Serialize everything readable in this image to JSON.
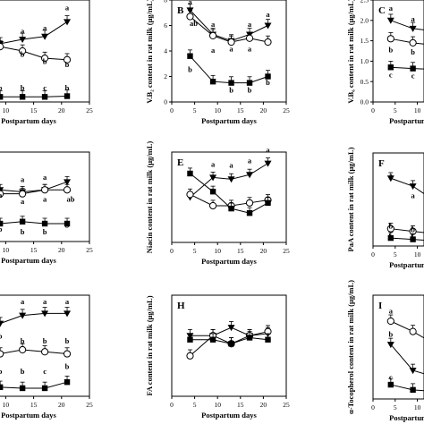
{
  "panel_letters": [
    "B",
    "C",
    "E",
    "F",
    "H",
    "I"
  ],
  "chart_data": [
    {
      "type": "line",
      "x": [
        4,
        9,
        13,
        17,
        21
      ],
      "xlim": [
        0,
        25
      ],
      "x_tick_labels": [
        "10",
        "15",
        "20",
        "25"
      ],
      "xlabel": "Postpartum days",
      "ylabel": "",
      "y_tick_labels": [],
      "series": [
        {
          "marker": "triangle",
          "values": [
            3.4,
            4.0,
            4.3,
            4.5,
            5.5
          ]
        },
        {
          "marker": "circle",
          "values": [
            3.4,
            3.8,
            3.5,
            3.0,
            2.9
          ]
        },
        {
          "marker": "square",
          "values": [
            0.3,
            0.35,
            0.35,
            0.35,
            0.4
          ]
        }
      ],
      "annotations": [
        {
          "text": "a",
          "x": 13,
          "y": 4.7
        },
        {
          "text": "a",
          "x": 17,
          "y": 4.9
        },
        {
          "text": "a",
          "x": 21,
          "y": 6.3
        },
        {
          "text": "b",
          "x": 13,
          "y": 3.1
        },
        {
          "text": "b",
          "x": 17,
          "y": 2.6
        },
        {
          "text": "b",
          "x": 21,
          "y": 2.4
        },
        {
          "text": "b",
          "x": 9,
          "y": 0.8
        },
        {
          "text": "b",
          "x": 13,
          "y": 0.8
        },
        {
          "text": "c",
          "x": 17,
          "y": 0.8
        },
        {
          "text": "b",
          "x": 21,
          "y": 0.8
        }
      ]
    },
    {
      "type": "line",
      "letter": "B",
      "x": [
        4,
        9,
        13,
        17,
        21
      ],
      "xlim": [
        0,
        25
      ],
      "ylim": [
        0,
        8
      ],
      "x_tick_labels": [
        "0",
        "5",
        "10",
        "15",
        "20",
        "25"
      ],
      "y_tick_labels": [
        "0",
        "2",
        "4",
        "6",
        "8"
      ],
      "xlabel": "Postpartum days",
      "ylabel": "V.B₂ content in rat milk (μg/mL)",
      "series": [
        {
          "marker": "triangle",
          "values": [
            7.2,
            5.3,
            4.8,
            5.3,
            6.0
          ]
        },
        {
          "marker": "circle",
          "values": [
            6.7,
            5.2,
            4.7,
            5.0,
            4.7
          ]
        },
        {
          "marker": "square",
          "values": [
            3.6,
            1.6,
            1.5,
            1.5,
            2.0
          ]
        }
      ],
      "annotations": [
        {
          "text": "a",
          "x": 4,
          "y": 7.65
        },
        {
          "text": "ab",
          "x": 4,
          "y": 5.95
        },
        {
          "text": "a",
          "x": 9,
          "y": 5.9
        },
        {
          "text": "a",
          "x": 17,
          "y": 5.9
        },
        {
          "text": "a",
          "x": 21,
          "y": 6.65
        },
        {
          "text": "a",
          "x": 9,
          "y": 3.85
        },
        {
          "text": "a",
          "x": 13,
          "y": 3.95
        },
        {
          "text": "a",
          "x": 17,
          "y": 3.95
        },
        {
          "text": "b",
          "x": 4,
          "y": 2.35
        },
        {
          "text": "b",
          "x": 13,
          "y": 0.75
        },
        {
          "text": "b",
          "x": 17,
          "y": 0.75
        },
        {
          "text": "b",
          "x": 21,
          "y": 1.35
        }
      ]
    },
    {
      "type": "line",
      "letter": "C",
      "x": [
        4,
        9,
        13,
        17,
        21
      ],
      "xlim": [
        0,
        25
      ],
      "ylim": [
        0,
        2.5
      ],
      "x_tick_labels": [
        "0",
        "5",
        "10"
      ],
      "y_tick_labels": [
        "0.0",
        "0.5",
        "1.0",
        "1.5",
        "2.0",
        "2.5"
      ],
      "xlabel": "Postpartum days",
      "ylabel": "V.B₆ content in rat milk (μg/mL)",
      "series": [
        {
          "marker": "triangle",
          "values": [
            2.0,
            1.8,
            1.75,
            1.7,
            1.7
          ]
        },
        {
          "marker": "circle",
          "values": [
            1.55,
            1.45,
            1.4,
            1.4,
            1.4
          ]
        },
        {
          "marker": "square",
          "values": [
            0.85,
            0.82,
            0.8,
            0.8,
            0.8
          ]
        }
      ],
      "annotations": [
        {
          "text": "a",
          "x": 4,
          "y": 2.24
        },
        {
          "text": "a",
          "x": 9,
          "y": 1.97
        },
        {
          "text": "b",
          "x": 4,
          "y": 1.22
        },
        {
          "text": "b",
          "x": 9,
          "y": 1.16
        },
        {
          "text": "c",
          "x": 4,
          "y": 0.6
        },
        {
          "text": "c",
          "x": 9,
          "y": 0.58
        }
      ]
    },
    {
      "type": "line",
      "x": [
        4,
        9,
        13,
        17,
        21
      ],
      "xlim": [
        0,
        25
      ],
      "x_tick_labels": [
        "10",
        "15",
        "20",
        "25"
      ],
      "xlabel": "Postpartum days",
      "ylabel": "",
      "y_tick_labels": [],
      "series": [
        {
          "marker": "triangle",
          "values": [
            3.6,
            2.6,
            2.5,
            2.6,
            3.0
          ]
        },
        {
          "marker": "circle",
          "values": [
            2.8,
            2.4,
            2.4,
            2.6,
            2.6
          ]
        },
        {
          "marker": "square",
          "values": [
            1.0,
            0.9,
            1.0,
            0.9,
            0.9
          ]
        }
      ],
      "annotations": [
        {
          "text": "a",
          "x": 13,
          "y": 3.0
        },
        {
          "text": "a",
          "x": 17,
          "y": 3.1
        },
        {
          "text": "a",
          "x": 9,
          "y": 2.2
        },
        {
          "text": "a",
          "x": 13,
          "y": 1.9
        },
        {
          "text": "a",
          "x": 17,
          "y": 2.0
        },
        {
          "text": "ab",
          "x": 21,
          "y": 2.0
        },
        {
          "text": "b",
          "x": 9,
          "y": 0.5
        },
        {
          "text": "b",
          "x": 13,
          "y": 0.35
        },
        {
          "text": "b",
          "x": 17,
          "y": 0.35
        },
        {
          "text": "b",
          "x": 21,
          "y": 0.7
        }
      ]
    },
    {
      "type": "line",
      "letter": "E",
      "x": [
        4,
        9,
        13,
        17,
        21
      ],
      "xlim": [
        0,
        25
      ],
      "ylim": [
        0,
        16
      ],
      "x_tick_labels": [
        "0",
        "5",
        "10",
        "15",
        "20",
        "25"
      ],
      "y_tick_labels": [],
      "xlabel": "Postpartum days",
      "ylabel": "Niacin content in rat milk (μg/mL)",
      "series": [
        {
          "marker": "triangle",
          "values": [
            8.0,
            11.5,
            11.2,
            12.0,
            14.0
          ]
        },
        {
          "marker": "circle",
          "values": [
            8.5,
            6.5,
            6.5,
            7.0,
            7.5
          ]
        },
        {
          "marker": "square",
          "values": [
            12.2,
            9.0,
            6.0,
            5.2,
            7.0
          ]
        }
      ],
      "annotations": [
        {
          "text": "a",
          "x": 9,
          "y": 13.4
        },
        {
          "text": "a",
          "x": 13,
          "y": 13.2
        },
        {
          "text": "a",
          "x": 17,
          "y": 14.0
        },
        {
          "text": "a",
          "x": 21,
          "y": 15.9
        }
      ]
    },
    {
      "type": "line",
      "letter": "F",
      "x": [
        4,
        9,
        13,
        17,
        21
      ],
      "xlim": [
        0,
        25
      ],
      "ylim": [
        0,
        70
      ],
      "x_tick_labels": [
        "0",
        "5",
        "10"
      ],
      "y_tick_labels": [],
      "xlabel": "Postpartum days",
      "ylabel": "PaA content in rat milk (μg/mL)",
      "series": [
        {
          "marker": "triangle",
          "values": [
            51,
            45,
            36,
            31,
            30
          ]
        },
        {
          "marker": "circle",
          "values": [
            13,
            11,
            9.5,
            9,
            9
          ]
        },
        {
          "marker": "square",
          "values": [
            6,
            5,
            4,
            4,
            4
          ]
        }
      ],
      "annotations": [
        {
          "text": "a",
          "x": 4,
          "y": 51
        },
        {
          "text": "a",
          "x": 9,
          "y": 36
        },
        {
          "text": "b",
          "x": 4,
          "y": 13
        },
        {
          "text": "b",
          "x": 9,
          "y": 10.5
        },
        {
          "text": "b",
          "x": 4,
          "y": 5.5
        },
        {
          "text": "b",
          "x": 9,
          "y": 4.5
        }
      ]
    },
    {
      "type": "line",
      "x": [
        4,
        9,
        13,
        17,
        21
      ],
      "xlim": [
        0,
        25
      ],
      "x_tick_labels": [
        "10",
        "15",
        "20",
        "25"
      ],
      "xlabel": "Postpartum days",
      "ylabel": "",
      "y_tick_labels": [],
      "series": [
        {
          "marker": "triangle",
          "values": [
            3.5,
            3.6,
            4.0,
            4.1,
            4.1
          ]
        },
        {
          "marker": "circle",
          "values": [
            2.0,
            2.1,
            2.3,
            2.2,
            2.1
          ]
        },
        {
          "marker": "square",
          "values": [
            0.4,
            0.45,
            0.4,
            0.4,
            0.7
          ]
        }
      ],
      "annotations": [
        {
          "text": "a",
          "x": 13,
          "y": 4.55
        },
        {
          "text": "a",
          "x": 17,
          "y": 4.55
        },
        {
          "text": "a",
          "x": 21,
          "y": 4.55
        },
        {
          "text": "b",
          "x": 9,
          "y": 2.85
        },
        {
          "text": "b",
          "x": 13,
          "y": 2.6
        },
        {
          "text": "b",
          "x": 17,
          "y": 2.6
        },
        {
          "text": "b",
          "x": 21,
          "y": 2.6
        },
        {
          "text": "b",
          "x": 9,
          "y": 1.1
        },
        {
          "text": "b",
          "x": 13,
          "y": 1.1
        },
        {
          "text": "c",
          "x": 17,
          "y": 1.1
        },
        {
          "text": "b",
          "x": 21,
          "y": 1.35
        }
      ]
    },
    {
      "type": "line",
      "letter": "H",
      "x": [
        4,
        9,
        13,
        17,
        21
      ],
      "xlim": [
        0,
        25
      ],
      "ylim": [
        0,
        5
      ],
      "x_tick_labels": [
        "0",
        "5",
        "10",
        "15",
        "20",
        "25"
      ],
      "y_tick_labels": [],
      "xlabel": "Postpartum days",
      "ylabel": "FA content in rat milk (μg/mL)",
      "series": [
        {
          "marker": "triangle",
          "values": [
            3.0,
            3.0,
            3.4,
            3.0,
            3.1
          ]
        },
        {
          "marker": "circle",
          "values": [
            2.0,
            3.0,
            2.6,
            3.0,
            3.2
          ]
        },
        {
          "marker": "square",
          "values": [
            2.8,
            2.8,
            2.6,
            2.9,
            2.8
          ]
        }
      ]
    },
    {
      "type": "line",
      "letter": "I",
      "x": [
        4,
        9,
        13,
        17,
        21
      ],
      "xlim": [
        0,
        25
      ],
      "ylim": [
        0,
        40
      ],
      "x_tick_labels": [
        "0",
        "5",
        "10"
      ],
      "y_tick_labels": [],
      "xlabel": "Postpartum days",
      "ylabel": "α-Tocopherol content in rat milk (μg/mL)",
      "series": [
        {
          "marker": "circle",
          "values": [
            30,
            26,
            22,
            20,
            19
          ]
        },
        {
          "marker": "triangle",
          "values": [
            21,
            11,
            9,
            8,
            8
          ]
        },
        {
          "marker": "square",
          "values": [
            5.5,
            3.5,
            3,
            3,
            3
          ]
        }
      ],
      "annotations": [
        {
          "text": "a",
          "x": 4,
          "y": 33
        },
        {
          "text": "b",
          "x": 4,
          "y": 24
        },
        {
          "text": "c",
          "x": 4,
          "y": 7.5
        }
      ]
    }
  ]
}
